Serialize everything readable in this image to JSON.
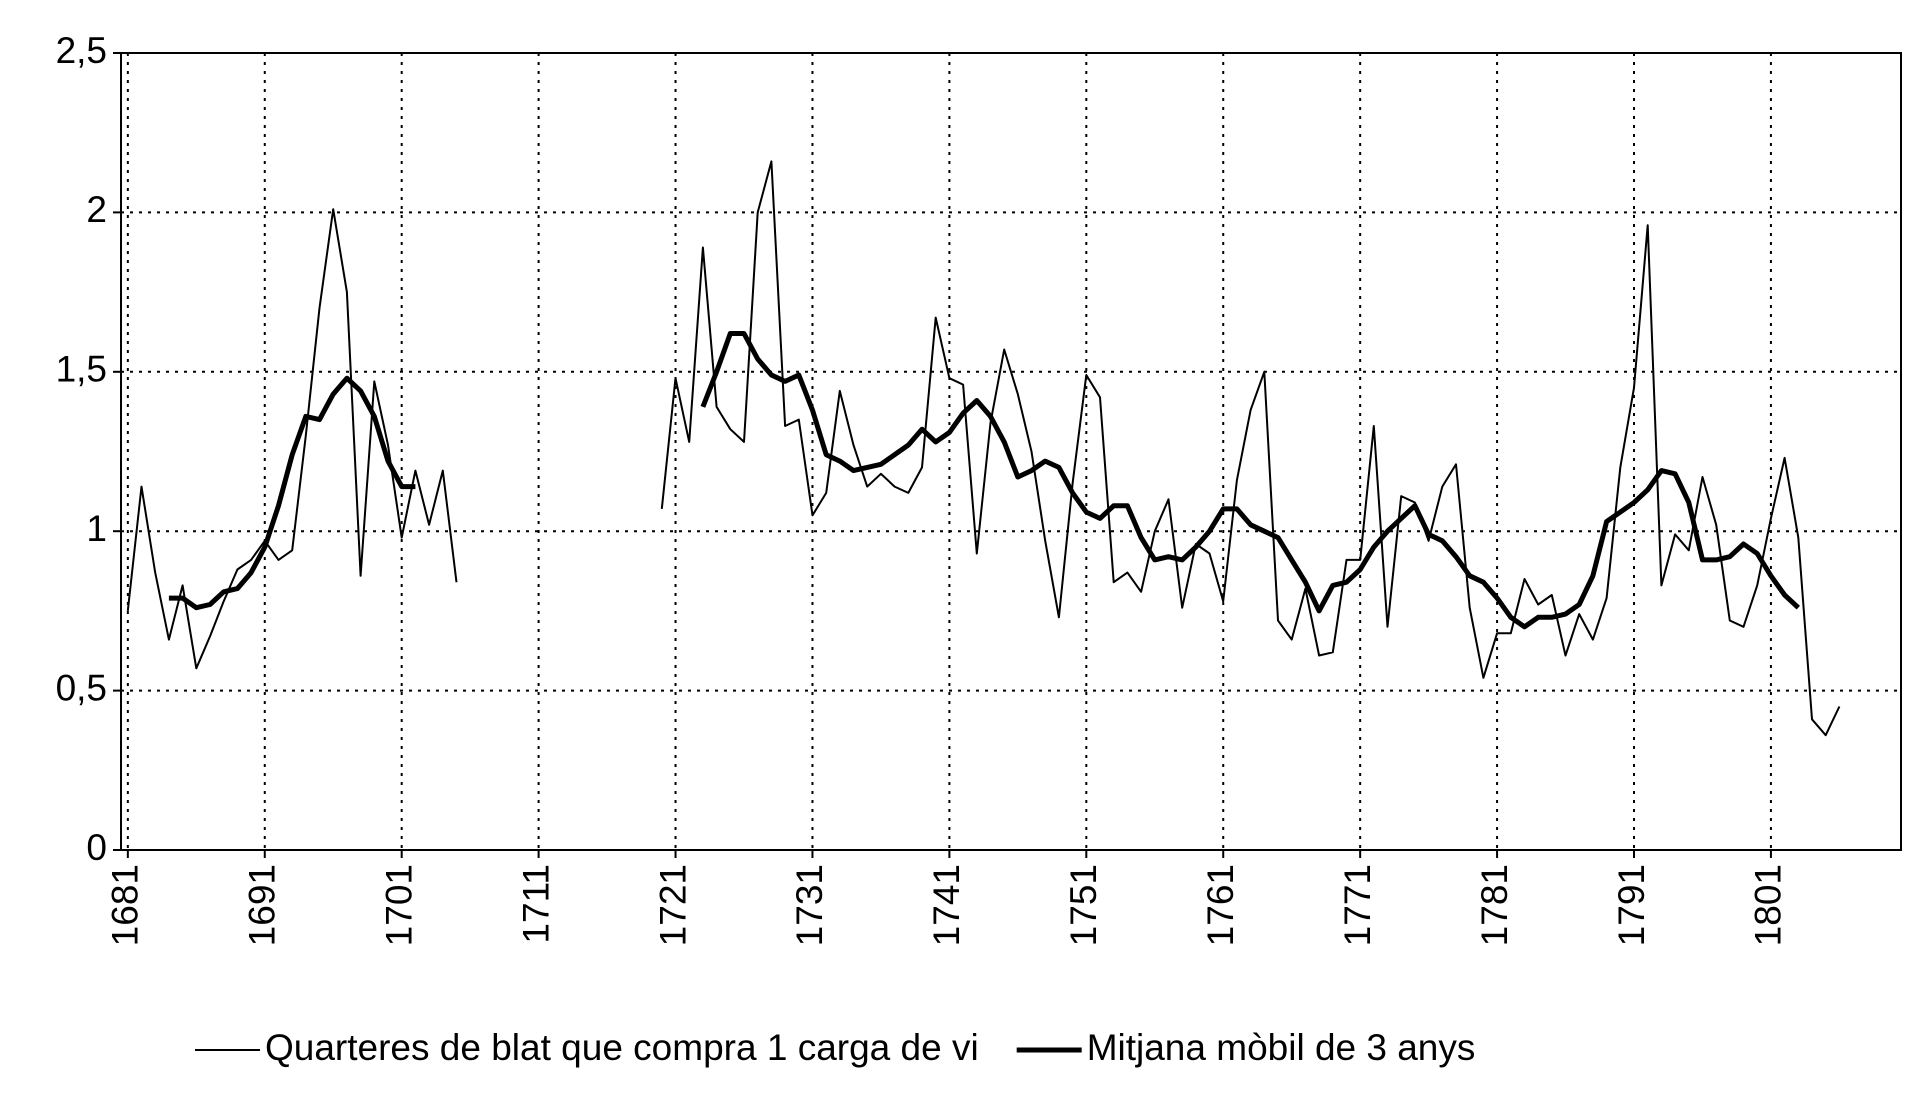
{
  "chart_data": {
    "type": "line",
    "x": [
      1681,
      1682,
      1683,
      1684,
      1685,
      1686,
      1687,
      1688,
      1689,
      1690,
      1691,
      1692,
      1693,
      1694,
      1695,
      1696,
      1697,
      1698,
      1699,
      1700,
      1701,
      1702,
      1703,
      1704,
      1705,
      1706,
      1707,
      1708,
      1709,
      1710,
      1711,
      1712,
      1713,
      1714,
      1715,
      1716,
      1717,
      1718,
      1719,
      1720,
      1721,
      1722,
      1723,
      1724,
      1725,
      1726,
      1727,
      1728,
      1729,
      1730,
      1731,
      1732,
      1733,
      1734,
      1735,
      1736,
      1737,
      1738,
      1739,
      1740,
      1741,
      1742,
      1743,
      1744,
      1745,
      1746,
      1747,
      1748,
      1749,
      1750,
      1751,
      1752,
      1753,
      1754,
      1755,
      1756,
      1757,
      1758,
      1759,
      1760,
      1761,
      1762,
      1763,
      1764,
      1765,
      1766,
      1767,
      1768,
      1769,
      1770,
      1771,
      1772,
      1773,
      1774,
      1775,
      1776,
      1777,
      1778,
      1779,
      1780,
      1781,
      1782,
      1783,
      1784,
      1785,
      1786,
      1787,
      1788,
      1789,
      1790,
      1791,
      1792,
      1793,
      1794,
      1795,
      1796,
      1797,
      1798,
      1799,
      1800,
      1801,
      1802,
      1803,
      1804,
      1805,
      1806
    ],
    "series": [
      {
        "name": "Quarteres de blat que compra 1 carga de vi",
        "color": "#000000",
        "width": "thin",
        "values": [
          0.75,
          1.14,
          0.87,
          0.66,
          0.83,
          0.57,
          0.67,
          0.78,
          0.88,
          0.91,
          0.97,
          0.91,
          0.94,
          1.3,
          1.7,
          2.01,
          1.75,
          0.86,
          1.47,
          1.27,
          0.98,
          1.19,
          1.02,
          1.19,
          0.84,
          null,
          null,
          null,
          null,
          null,
          null,
          null,
          null,
          null,
          null,
          null,
          null,
          null,
          null,
          1.07,
          1.48,
          1.28,
          1.89,
          1.39,
          1.32,
          1.28,
          2.0,
          2.16,
          1.33,
          1.35,
          1.05,
          1.12,
          1.44,
          1.27,
          1.14,
          1.18,
          1.14,
          1.12,
          1.2,
          1.67,
          1.48,
          1.46,
          0.93,
          1.34,
          1.57,
          1.43,
          1.25,
          0.97,
          0.73,
          1.15,
          1.49,
          1.42,
          0.84,
          0.87,
          0.81,
          1.0,
          1.1,
          0.76,
          0.96,
          0.93,
          0.78,
          1.16,
          1.38,
          1.5,
          0.72,
          0.66,
          0.82,
          0.61,
          0.62,
          0.91,
          0.91,
          1.33,
          0.7,
          1.11,
          1.09,
          0.97,
          1.14,
          1.21,
          0.76,
          0.54,
          0.68,
          0.68,
          0.85,
          0.77,
          0.8,
          0.61,
          0.74,
          0.66,
          0.79,
          1.2,
          1.45,
          1.96,
          0.83,
          0.99,
          0.94,
          1.17,
          1.02,
          0.72,
          0.7,
          0.83,
          1.04,
          1.23,
          0.98,
          0.41,
          0.36,
          0.45
        ]
      },
      {
        "name": "Mitjana mòbil de 3 anys",
        "color": "#000000",
        "width": "thick",
        "values": [
          null,
          null,
          null,
          0.79,
          0.79,
          0.76,
          0.77,
          0.81,
          0.82,
          0.87,
          0.95,
          1.08,
          1.24,
          1.36,
          1.35,
          1.43,
          1.48,
          1.44,
          1.36,
          1.22,
          1.14,
          1.14,
          null,
          null,
          null,
          null,
          null,
          null,
          null,
          null,
          null,
          null,
          null,
          null,
          null,
          null,
          null,
          null,
          null,
          null,
          null,
          null,
          1.39,
          1.5,
          1.62,
          1.62,
          1.54,
          1.49,
          1.47,
          1.49,
          1.38,
          1.24,
          1.22,
          1.19,
          1.2,
          1.21,
          1.24,
          1.27,
          1.32,
          1.28,
          1.31,
          1.37,
          1.41,
          1.36,
          1.28,
          1.17,
          1.19,
          1.22,
          1.2,
          1.12,
          1.06,
          1.04,
          1.08,
          1.08,
          0.98,
          0.91,
          0.92,
          0.91,
          0.95,
          1.0,
          1.07,
          1.07,
          1.02,
          1.0,
          0.98,
          0.91,
          0.84,
          0.75,
          0.83,
          0.84,
          0.88,
          0.95,
          1.0,
          1.04,
          1.08,
          0.99,
          0.97,
          0.92,
          0.86,
          0.84,
          0.79,
          0.73,
          0.7,
          0.73,
          0.73,
          0.74,
          0.77,
          0.86,
          1.03,
          1.06,
          1.09,
          1.13,
          1.19,
          1.18,
          1.09,
          0.91,
          0.91,
          0.92,
          0.96,
          0.93,
          0.86,
          0.8,
          0.76,
          null,
          null,
          null
        ]
      }
    ],
    "xlim": [
      1680.5,
      1810.5
    ],
    "xticks": [
      1681,
      1691,
      1701,
      1711,
      1721,
      1731,
      1741,
      1751,
      1761,
      1771,
      1781,
      1791,
      1801
    ],
    "ylim": [
      0,
      2.5
    ],
    "yticks": [
      0,
      {
        "value": 0.5,
        "label": "0,5"
      },
      1,
      {
        "value": 1.5,
        "label": "1,5"
      },
      2,
      {
        "value": 2.5,
        "label": "2,5"
      }
    ],
    "grid": true,
    "legend": "bottom"
  }
}
